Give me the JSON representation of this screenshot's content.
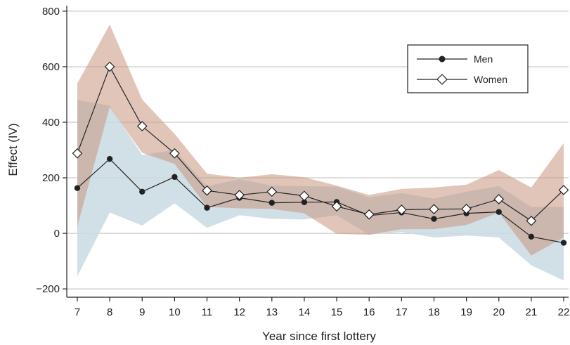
{
  "chart_data": {
    "type": "line",
    "title": "",
    "xlabel": "Year since first lottery",
    "ylabel": "Effect (IV)",
    "x": [
      7,
      8,
      9,
      10,
      11,
      12,
      13,
      14,
      15,
      16,
      17,
      18,
      19,
      20,
      21,
      22
    ],
    "xlim": [
      7,
      22
    ],
    "ylim": [
      -230,
      820
    ],
    "yticks": [
      -200,
      0,
      200,
      400,
      600,
      800
    ],
    "ytick_labels": [
      "−200",
      "0",
      "200",
      "400",
      "600",
      "800"
    ],
    "grid": "horizontal",
    "legend_position": "top-right",
    "series": [
      {
        "name": "Men",
        "marker": "filled-circle",
        "values": [
          163,
          268,
          150,
          203,
          92,
          128,
          110,
          112,
          113,
          64,
          75,
          52,
          72,
          77,
          -12,
          -34
        ],
        "ci_low": [
          -155,
          75,
          28,
          108,
          20,
          65,
          52,
          50,
          65,
          -5,
          5,
          -15,
          -8,
          -15,
          -115,
          -170
        ],
        "ci_high": [
          480,
          460,
          282,
          300,
          170,
          195,
          172,
          170,
          168,
          130,
          145,
          125,
          150,
          170,
          95,
          95
        ],
        "band_color": "#c9dbe3"
      },
      {
        "name": "Women",
        "marker": "open-diamond",
        "values": [
          288,
          600,
          386,
          288,
          154,
          138,
          150,
          135,
          97,
          68,
          85,
          87,
          88,
          123,
          45,
          156
        ],
        "ci_low": [
          25,
          455,
          290,
          250,
          95,
          90,
          88,
          72,
          -2,
          -5,
          15,
          15,
          30,
          75,
          -80,
          -15
        ],
        "ci_high": [
          540,
          752,
          482,
          358,
          215,
          200,
          213,
          202,
          172,
          138,
          160,
          165,
          175,
          228,
          165,
          325
        ],
        "band_color": "#c9957f"
      }
    ]
  }
}
